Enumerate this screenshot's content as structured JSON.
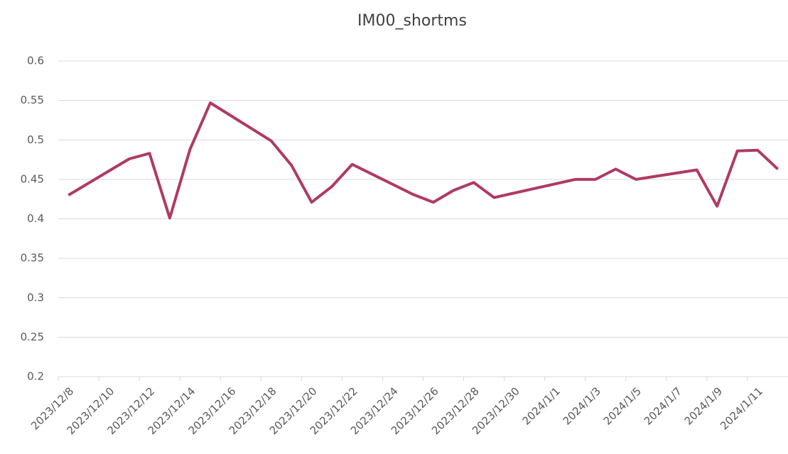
{
  "chart_data": {
    "type": "line",
    "title": "IM00_shortms",
    "x": [
      "2023/12/8",
      "2023/12/11",
      "2023/12/12",
      "2023/12/13",
      "2023/12/14",
      "2023/12/15",
      "2023/12/18",
      "2023/12/19",
      "2023/12/20",
      "2023/12/21",
      "2023/12/22",
      "2023/12/25",
      "2023/12/26",
      "2023/12/27",
      "2023/12/28",
      "2023/12/29",
      "2024/1/2",
      "2024/1/3",
      "2024/1/4",
      "2024/1/5",
      "2024/1/8",
      "2024/1/9",
      "2024/1/10",
      "2024/1/11",
      "2024/1/12"
    ],
    "series": [
      {
        "name": "IM00_shortms",
        "color": "#b03a64",
        "values": [
          0.43,
          0.476,
          0.483,
          0.401,
          0.488,
          0.547,
          0.499,
          0.468,
          0.421,
          0.441,
          0.469,
          0.431,
          0.421,
          0.436,
          0.446,
          0.427,
          0.45,
          0.45,
          0.463,
          0.45,
          0.462,
          0.416,
          0.486,
          0.487,
          0.463
        ]
      }
    ],
    "xlim": [
      "2023/12/8",
      "2024/1/12"
    ],
    "xticks": [
      "2023/12/8",
      "2023/12/10",
      "2023/12/12",
      "2023/12/14",
      "2023/12/16",
      "2023/12/18",
      "2023/12/20",
      "2023/12/22",
      "2023/12/24",
      "2023/12/26",
      "2023/12/28",
      "2023/12/30",
      "2024/1/1",
      "2024/1/3",
      "2024/1/5",
      "2024/1/7",
      "2024/1/9",
      "2024/1/11"
    ],
    "ylim": [
      0.2,
      0.6
    ],
    "yticks": [
      0.2,
      0.25,
      0.3,
      0.35,
      0.4,
      0.45,
      0.5,
      0.55,
      0.6
    ],
    "grid": true
  }
}
